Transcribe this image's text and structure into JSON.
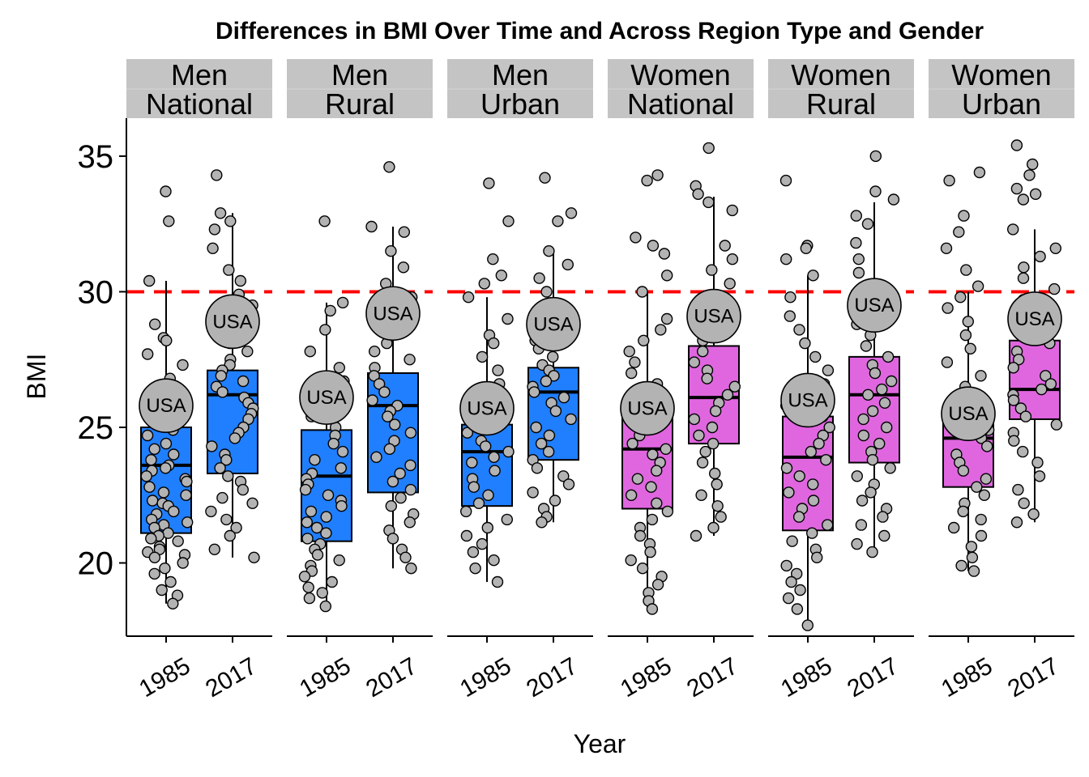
{
  "chart_data": {
    "type": "box",
    "title": "Differences in BMI Over Time and Across Region Type and Gender",
    "xlabel": "Year",
    "ylabel": "BMI",
    "ylim": [
      17.3,
      36.4
    ],
    "yticks": [
      20,
      25,
      30,
      35
    ],
    "categories": [
      "1985",
      "2017"
    ],
    "reference_line": {
      "y": 30,
      "color": "#ff0000",
      "style": "dashed"
    },
    "point_label": "USA",
    "colors": {
      "Men": "#1f7fff",
      "Women": "#e066e0",
      "points": "#b3b3b3",
      "strip": "#c4c4c4"
    },
    "panels": [
      {
        "gender": "Men",
        "region": "National",
        "boxes": [
          {
            "year": "1985",
            "min": 18.5,
            "q1": 21.1,
            "median": 23.6,
            "q3": 25.0,
            "max": 30.4,
            "usa": 25.8,
            "points": [
              33.7,
              32.6,
              30.4,
              28.8,
              28.3,
              28.2,
              27.7,
              27.3,
              26.8,
              26.5,
              26.0,
              25.3,
              24.9,
              24.7,
              24.4,
              24.2,
              24.0,
              23.8,
              23.6,
              23.5,
              23.4,
              23.2,
              23.1,
              23.0,
              22.8,
              22.6,
              22.5,
              22.3,
              22.2,
              22.1,
              21.9,
              21.8,
              21.6,
              21.5,
              21.4,
              21.3,
              21.1,
              21.0,
              20.9,
              20.8,
              20.6,
              20.5,
              20.4,
              20.3,
              20.2,
              20.0,
              19.8,
              19.6,
              19.3,
              19.0,
              18.8,
              18.5
            ]
          },
          {
            "year": "2017",
            "min": 20.2,
            "q1": 23.3,
            "median": 26.2,
            "q3": 27.1,
            "max": 32.9,
            "usa": 28.9,
            "points": [
              34.3,
              32.9,
              32.6,
              32.3,
              31.6,
              30.8,
              30.4,
              29.9,
              29.5,
              29.1,
              28.7,
              28.4,
              28.1,
              27.8,
              27.5,
              27.3,
              27.1,
              26.9,
              26.7,
              26.5,
              26.3,
              26.1,
              25.9,
              25.7,
              25.5,
              25.3,
              25.0,
              24.8,
              24.6,
              24.3,
              24.0,
              23.8,
              23.5,
              23.2,
              23.0,
              22.7,
              22.4,
              22.2,
              21.9,
              21.6,
              21.3,
              21.0,
              20.5,
              20.2
            ]
          }
        ]
      },
      {
        "gender": "Men",
        "region": "Rural",
        "boxes": [
          {
            "year": "1985",
            "min": 18.4,
            "q1": 20.8,
            "median": 23.2,
            "q3": 24.9,
            "max": 29.6,
            "usa": 26.1,
            "points": [
              32.6,
              29.6,
              29.3,
              28.6,
              27.8,
              27.2,
              26.7,
              26.3,
              25.9,
              25.4,
              25.0,
              24.7,
              24.4,
              24.1,
              23.8,
              23.5,
              23.3,
              23.1,
              22.9,
              22.7,
              22.5,
              22.3,
              22.1,
              21.9,
              21.7,
              21.5,
              21.3,
              21.1,
              20.9,
              20.7,
              20.5,
              20.3,
              20.1,
              19.9,
              19.7,
              19.5,
              19.3,
              19.1,
              18.9,
              18.7,
              18.4
            ]
          },
          {
            "year": "2017",
            "min": 19.8,
            "q1": 22.6,
            "median": 25.8,
            "q3": 27.0,
            "max": 32.4,
            "usa": 29.2,
            "points": [
              34.6,
              32.4,
              32.2,
              31.5,
              30.9,
              30.3,
              29.8,
              29.3,
              28.9,
              28.5,
              28.1,
              27.8,
              27.5,
              27.2,
              26.9,
              26.6,
              26.3,
              26.0,
              25.8,
              25.6,
              25.4,
              25.1,
              24.8,
              24.5,
              24.2,
              23.9,
              23.6,
              23.3,
              23.0,
              22.7,
              22.4,
              22.1,
              21.8,
              21.5,
              21.2,
              20.9,
              20.5,
              20.2,
              19.8
            ]
          }
        ]
      },
      {
        "gender": "Men",
        "region": "Urban",
        "boxes": [
          {
            "year": "1985",
            "min": 19.3,
            "q1": 22.1,
            "median": 24.1,
            "q3": 25.1,
            "max": 29.8,
            "usa": 25.7,
            "points": [
              34.0,
              32.6,
              31.2,
              30.6,
              30.3,
              29.8,
              29.0,
              28.4,
              28.1,
              27.6,
              27.1,
              26.6,
              26.2,
              25.8,
              25.4,
              25.1,
              24.8,
              24.5,
              24.3,
              24.1,
              23.9,
              23.7,
              23.4,
              23.1,
              22.8,
              22.5,
              22.2,
              21.9,
              21.6,
              21.3,
              21.0,
              20.7,
              20.4,
              20.1,
              19.8,
              19.3
            ]
          },
          {
            "year": "2017",
            "min": 21.5,
            "q1": 23.8,
            "median": 26.3,
            "q3": 27.2,
            "max": 31.6,
            "usa": 28.8,
            "points": [
              34.2,
              32.9,
              32.6,
              31.5,
              31.0,
              30.5,
              30.0,
              29.5,
              29.0,
              28.6,
              28.2,
              27.9,
              27.6,
              27.3,
              27.1,
              26.9,
              26.7,
              26.5,
              26.3,
              26.1,
              25.9,
              25.6,
              25.3,
              25.0,
              24.7,
              24.4,
              24.1,
              23.8,
              23.5,
              23.2,
              22.9,
              22.6,
              22.3,
              22.0,
              21.7,
              21.5
            ]
          }
        ]
      },
      {
        "gender": "Women",
        "region": "National",
        "boxes": [
          {
            "year": "1985",
            "min": 18.3,
            "q1": 22.0,
            "median": 24.2,
            "q3": 25.5,
            "max": 30.0,
            "usa": 25.7,
            "points": [
              34.3,
              34.1,
              32.0,
              31.7,
              31.4,
              30.6,
              30.0,
              29.0,
              28.6,
              28.2,
              27.8,
              27.4,
              27.0,
              26.6,
              26.2,
              25.8,
              25.4,
              25.0,
              24.7,
              24.4,
              24.2,
              24.0,
              23.7,
              23.4,
              23.1,
              22.8,
              22.5,
              22.2,
              21.9,
              21.6,
              21.3,
              21.0,
              20.7,
              20.4,
              20.1,
              19.8,
              19.5,
              19.2,
              18.9,
              18.6,
              18.3
            ]
          },
          {
            "year": "2017",
            "min": 21.0,
            "q1": 24.4,
            "median": 26.1,
            "q3": 28.0,
            "max": 33.5,
            "usa": 29.1,
            "points": [
              35.3,
              33.9,
              33.6,
              33.3,
              33.0,
              31.7,
              31.2,
              30.8,
              30.3,
              29.8,
              29.4,
              29.0,
              28.6,
              28.2,
              27.8,
              27.4,
              27.1,
              26.8,
              26.5,
              26.2,
              25.9,
              25.6,
              25.3,
              25.0,
              24.7,
              24.4,
              24.1,
              23.7,
              23.3,
              22.9,
              22.5,
              22.1,
              21.7,
              21.3,
              21.0
            ]
          }
        ]
      },
      {
        "gender": "Women",
        "region": "Rural",
        "boxes": [
          {
            "year": "1985",
            "min": 17.7,
            "q1": 21.2,
            "median": 23.9,
            "q3": 25.4,
            "max": 30.6,
            "usa": 26.0,
            "points": [
              34.1,
              31.7,
              31.6,
              31.2,
              30.6,
              29.8,
              29.1,
              28.6,
              28.1,
              27.6,
              27.1,
              26.6,
              26.2,
              25.8,
              25.4,
              25.0,
              24.7,
              24.4,
              24.1,
              23.8,
              23.5,
              23.2,
              22.9,
              22.6,
              22.3,
              22.0,
              21.7,
              21.4,
              21.1,
              20.8,
              20.5,
              20.2,
              19.9,
              19.6,
              19.3,
              19.0,
              18.7,
              18.3,
              17.7
            ]
          },
          {
            "year": "2017",
            "min": 20.4,
            "q1": 23.7,
            "median": 26.2,
            "q3": 27.6,
            "max": 33.3,
            "usa": 29.5,
            "points": [
              35.0,
              33.7,
              33.4,
              32.8,
              32.5,
              31.8,
              31.2,
              30.7,
              30.2,
              29.7,
              29.2,
              28.8,
              28.4,
              28.0,
              27.6,
              27.3,
              27.0,
              26.7,
              26.4,
              26.2,
              25.9,
              25.6,
              25.3,
              25.0,
              24.7,
              24.4,
              24.1,
              23.8,
              23.5,
              23.2,
              22.9,
              22.6,
              22.3,
              22.0,
              21.7,
              21.4,
              21.0,
              20.7,
              20.4
            ]
          }
        ]
      },
      {
        "gender": "Women",
        "region": "Urban",
        "boxes": [
          {
            "year": "1985",
            "min": 19.7,
            "q1": 22.8,
            "median": 24.6,
            "q3": 25.5,
            "max": 30.0,
            "usa": 25.5,
            "points": [
              34.4,
              34.1,
              32.8,
              32.2,
              31.6,
              30.8,
              30.2,
              29.8,
              29.4,
              28.9,
              28.4,
              27.9,
              27.4,
              26.9,
              26.5,
              26.1,
              25.7,
              25.3,
              24.9,
              24.6,
              24.3,
              24.0,
              23.7,
              23.4,
              23.1,
              22.8,
              22.5,
              22.2,
              21.9,
              21.6,
              21.3,
              21.0,
              20.6,
              20.2,
              19.9,
              19.7
            ]
          },
          {
            "year": "2017",
            "min": 21.5,
            "q1": 25.3,
            "median": 26.4,
            "q3": 28.2,
            "max": 32.3,
            "usa": 29.0,
            "points": [
              35.4,
              34.7,
              34.3,
              33.8,
              33.6,
              33.4,
              32.3,
              31.6,
              31.3,
              30.9,
              30.5,
              30.1,
              29.7,
              29.3,
              28.9,
              28.5,
              28.1,
              27.8,
              27.5,
              27.2,
              26.9,
              26.6,
              26.4,
              26.2,
              26.0,
              25.7,
              25.4,
              25.1,
              24.8,
              24.5,
              24.1,
              23.7,
              23.2,
              22.7,
              22.2,
              21.8,
              21.5
            ]
          }
        ]
      }
    ]
  }
}
